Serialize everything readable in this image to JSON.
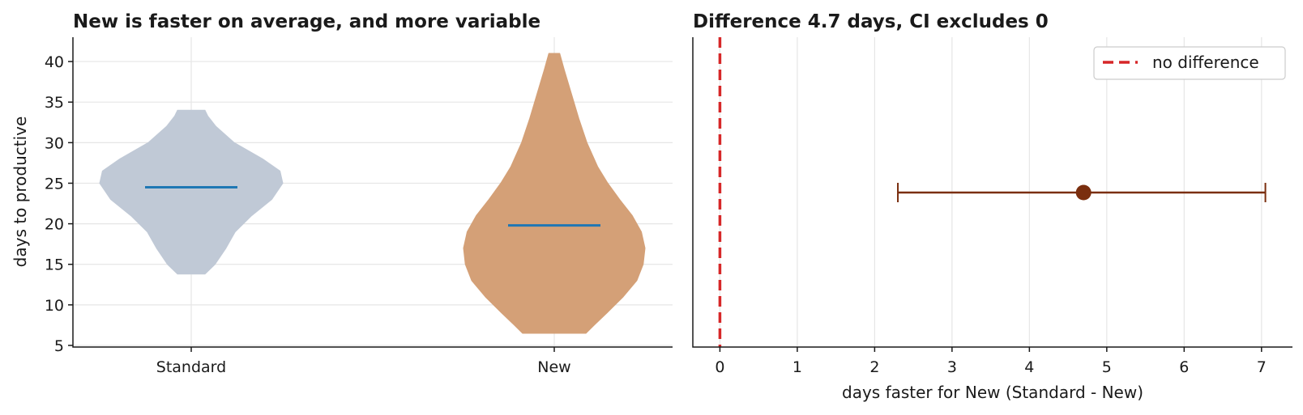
{
  "chart_data": [
    {
      "type": "violin",
      "title": "New is faster on average, and more variable",
      "xlabel": "",
      "ylabel": "days to productive",
      "categories": [
        "Standard",
        "New"
      ],
      "ylim": [
        4.8,
        43
      ],
      "yticks": [
        5,
        10,
        15,
        20,
        25,
        30,
        35,
        40
      ],
      "grid": true,
      "series": [
        {
          "category": "Standard",
          "color": "#c0c9d6",
          "median": 24.5,
          "min": 13.8,
          "max": 34,
          "profile": [
            [
              13.8,
              0.15
            ],
            [
              15,
              0.26
            ],
            [
              17,
              0.38
            ],
            [
              19,
              0.48
            ],
            [
              21,
              0.66
            ],
            [
              23,
              0.88
            ],
            [
              25,
              1.0
            ],
            [
              26.5,
              0.97
            ],
            [
              28,
              0.78
            ],
            [
              30,
              0.47
            ],
            [
              32,
              0.27
            ],
            [
              33.3,
              0.18
            ],
            [
              34,
              0.15
            ]
          ]
        },
        {
          "category": "New",
          "color": "#d4a077",
          "median": 19.8,
          "min": 6.5,
          "max": 41,
          "profile": [
            [
              6.5,
              0.35
            ],
            [
              7.5,
              0.44
            ],
            [
              9,
              0.58
            ],
            [
              11,
              0.76
            ],
            [
              13,
              0.91
            ],
            [
              15,
              0.98
            ],
            [
              17,
              1.0
            ],
            [
              19,
              0.96
            ],
            [
              21,
              0.86
            ],
            [
              23,
              0.72
            ],
            [
              25,
              0.59
            ],
            [
              27,
              0.48
            ],
            [
              30,
              0.36
            ],
            [
              33,
              0.27
            ],
            [
              36,
              0.19
            ],
            [
              39,
              0.11
            ],
            [
              41,
              0.06
            ]
          ]
        }
      ],
      "median_color": "#1f77b4"
    },
    {
      "type": "errorbar",
      "title": "Difference 4.7 days, CI excludes 0",
      "xlabel": "days faster for New (Standard - New)",
      "ylabel": "",
      "xlim": [
        -0.35,
        7.4
      ],
      "xticks": [
        0,
        1,
        2,
        3,
        4,
        5,
        6,
        7
      ],
      "grid": true,
      "estimate": 4.7,
      "ci": [
        2.3,
        7.05
      ],
      "color": "#7a2e0e",
      "reference_line": {
        "x": 0,
        "label": "no difference",
        "color": "#d62728",
        "style": "dashed"
      },
      "legend_position": "top-right"
    }
  ]
}
